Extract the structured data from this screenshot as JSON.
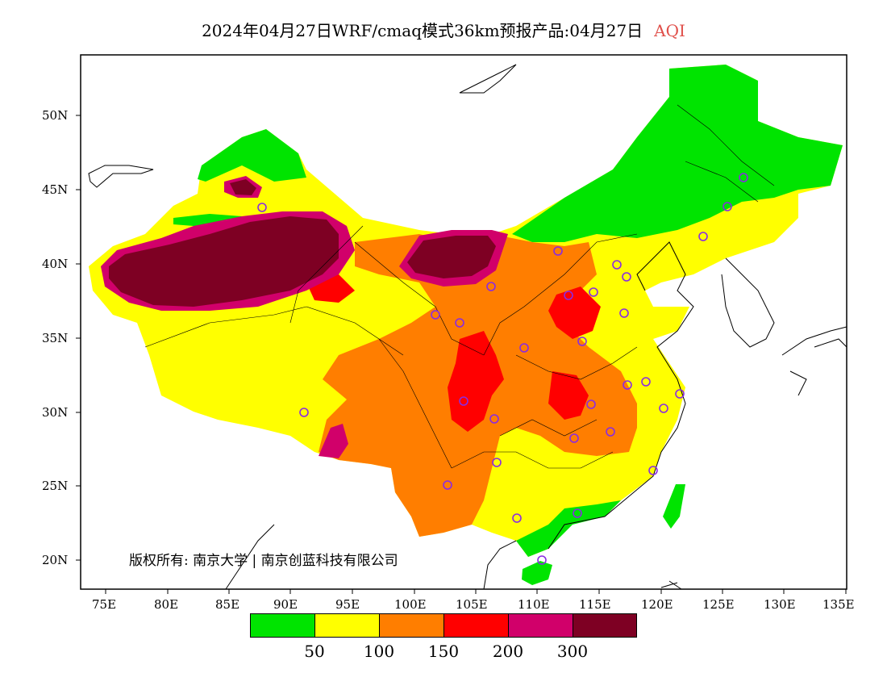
{
  "title": {
    "text": "2024年04月27日WRF/cmaq模式36km预报产品:04月27日",
    "variable": "AQI",
    "variable_color": "#e0504b"
  },
  "map": {
    "lon_labels": [
      "75E",
      "80E",
      "85E",
      "90E",
      "95E",
      "100E",
      "105E",
      "110E",
      "115E",
      "120E",
      "125E",
      "130E",
      "135E"
    ],
    "lat_labels": [
      "50N",
      "45N",
      "40N",
      "35N",
      "30N",
      "25N",
      "20N"
    ]
  },
  "copyright": "版权所有: 南京大学 | 南京创蓝科技有限公司",
  "legend": {
    "colors": [
      "#00e400",
      "#ffff00",
      "#ff7e00",
      "#ff0000",
      "#d1006a",
      "#7e0023"
    ],
    "labels": [
      "50",
      "100",
      "150",
      "200",
      "300"
    ]
  },
  "station_marker_color": "#8a2be2"
}
